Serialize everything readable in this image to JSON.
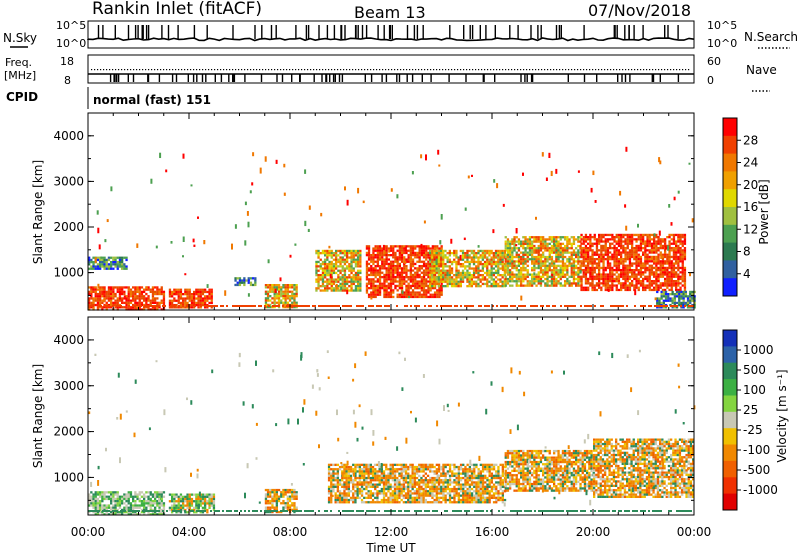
{
  "header": {
    "station": "Rankin Inlet (fitACF)",
    "beam": "Beam 13",
    "date": "07/Nov/2018"
  },
  "noise_panel": {
    "left_label": "N.Sky",
    "right_label": "N.Search",
    "left_ticks": [
      "10^5",
      "10^0"
    ],
    "right_ticks": [
      "10^5",
      "10^0"
    ]
  },
  "freq_panel": {
    "left_label_1": "Freq.",
    "left_label_2": "[MHz]",
    "left_ticks": [
      "18",
      "8"
    ],
    "right_label": "Nave",
    "right_ticks": [
      "60",
      "0"
    ]
  },
  "cpid": {
    "label": "CPID",
    "value": "normal (fast) 151"
  },
  "chart_data": [
    {
      "type": "heatmap",
      "name": "power",
      "ylabel": "Slant Range [km]",
      "ylim": [
        180,
        4500
      ],
      "yticks": [
        "4000",
        "3000",
        "2000",
        "1000"
      ],
      "xlabel": "Time UT",
      "xticks": [
        "00:00",
        "04:00",
        "08:00",
        "12:00",
        "16:00",
        "20:00",
        "00:00"
      ],
      "colorbar": {
        "label": "Power [dB]",
        "ticks": [
          "28",
          "24",
          "20",
          "16",
          "12",
          "8",
          "4"
        ],
        "colors": [
          "#ff0000",
          "#f04000",
          "#f07800",
          "#f0a000",
          "#e0d800",
          "#a0c040",
          "#4ca050",
          "#2c7a50",
          "#3060a0",
          "#1020ff"
        ]
      },
      "regions": [
        {
          "t0": 0.0,
          "t1": 3.0,
          "r0": 200,
          "r1": 700,
          "level": "high"
        },
        {
          "t0": 0.0,
          "t1": 1.5,
          "r0": 1100,
          "r1": 1350,
          "level": "low"
        },
        {
          "t0": 3.2,
          "t1": 4.9,
          "r0": 250,
          "r1": 650,
          "level": "high"
        },
        {
          "t0": 5.8,
          "t1": 6.6,
          "r0": 750,
          "r1": 900,
          "level": "low"
        },
        {
          "t0": 7.0,
          "t1": 8.3,
          "r0": 250,
          "r1": 750,
          "level": "mid"
        },
        {
          "t0": 9.0,
          "t1": 10.8,
          "r0": 600,
          "r1": 1500,
          "level": "mid"
        },
        {
          "t0": 11.0,
          "t1": 14.0,
          "r0": 450,
          "r1": 1600,
          "level": "high"
        },
        {
          "t0": 13.5,
          "t1": 16.5,
          "r0": 700,
          "r1": 1500,
          "level": "mid"
        },
        {
          "t0": 16.5,
          "t1": 19.5,
          "r0": 700,
          "r1": 1800,
          "level": "mid"
        },
        {
          "t0": 19.5,
          "t1": 23.6,
          "r0": 600,
          "r1": 1850,
          "level": "high"
        },
        {
          "t0": 22.5,
          "t1": 24.0,
          "r0": 250,
          "r1": 600,
          "level": "low"
        }
      ]
    },
    {
      "type": "heatmap",
      "name": "velocity",
      "ylabel": "Slant Range [km]",
      "ylim": [
        180,
        4500
      ],
      "yticks": [
        "4000",
        "3000",
        "2000",
        "1000"
      ],
      "xlabel": "Time UT",
      "xticks": [
        "00:00",
        "04:00",
        "08:00",
        "12:00",
        "16:00",
        "20:00",
        "00:00"
      ],
      "colorbar": {
        "label": "Velocity [m s⁻¹]",
        "ticks": [
          "1000",
          "500",
          "100",
          "25",
          "-25",
          "-100",
          "-500",
          "-1000"
        ],
        "colors": [
          "#1430b8",
          "#2c62a8",
          "#2c8a5a",
          "#3cb043",
          "#84d440",
          "#c8c8b4",
          "#f0c000",
          "#f08800",
          "#f06000",
          "#f03000",
          "#e00000"
        ]
      },
      "regions": [
        {
          "t0": 0.0,
          "t1": 3.0,
          "r0": 200,
          "r1": 700,
          "level": "near-zero"
        },
        {
          "t0": 3.2,
          "t1": 5.0,
          "r0": 250,
          "r1": 650,
          "level": "positive"
        },
        {
          "t0": 7.0,
          "t1": 8.3,
          "r0": 250,
          "r1": 750,
          "level": "negative"
        },
        {
          "t0": 9.5,
          "t1": 16.5,
          "r0": 450,
          "r1": 1300,
          "level": "negative"
        },
        {
          "t0": 16.5,
          "t1": 20.0,
          "r0": 700,
          "r1": 1600,
          "level": "negative"
        },
        {
          "t0": 20.0,
          "t1": 24.0,
          "r0": 600,
          "r1": 1850,
          "level": "negative"
        }
      ]
    }
  ]
}
